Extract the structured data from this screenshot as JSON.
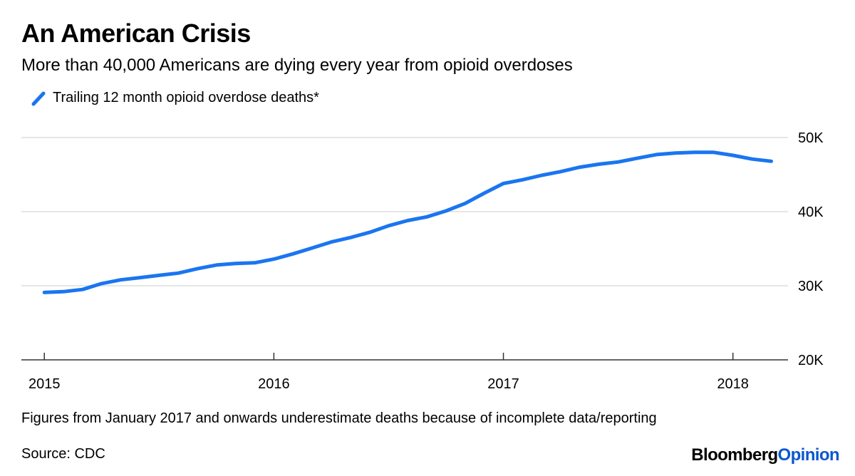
{
  "title": "An American Crisis",
  "subtitle": "More than 40,000 Americans are dying every year from opioid overdoses",
  "legend": {
    "label": "Trailing 12 month opioid overdose deaths*"
  },
  "footnote": "Figures from January 2017 and onwards underestimate deaths because of incomplete data/reporting",
  "source": "Source: CDC",
  "brand": {
    "main": "Bloomberg",
    "opinion": "Opinion"
  },
  "colors": {
    "line": "#1a75f0",
    "grid": "#e6e6e6",
    "axis": "#333333"
  },
  "chart_data": {
    "type": "line",
    "title": "An American Crisis",
    "xlabel": "",
    "ylabel": "",
    "series": [
      {
        "name": "Trailing 12 month opioid overdose deaths*",
        "x": [
          2015.0,
          2015.083,
          2015.167,
          2015.25,
          2015.333,
          2015.417,
          2015.5,
          2015.583,
          2015.667,
          2015.75,
          2015.833,
          2015.917,
          2016.0,
          2016.083,
          2016.167,
          2016.25,
          2016.333,
          2016.417,
          2016.5,
          2016.583,
          2016.667,
          2016.75,
          2016.833,
          2016.917,
          2017.0,
          2017.083,
          2017.167,
          2017.25,
          2017.333,
          2017.417,
          2017.5,
          2017.583,
          2017.667,
          2017.75,
          2017.833,
          2017.917,
          2018.0,
          2018.083,
          2018.167
        ],
        "values": [
          29100,
          29200,
          29500,
          30300,
          30800,
          31100,
          31400,
          31700,
          32300,
          32800,
          33000,
          33100,
          33600,
          34300,
          35100,
          35900,
          36500,
          37200,
          38100,
          38800,
          39300,
          40100,
          41100,
          42500,
          43800,
          44300,
          44900,
          45400,
          46000,
          46400,
          46700,
          47200,
          47700,
          47900,
          48000,
          48000,
          47600,
          47100,
          46800
        ]
      }
    ],
    "x_ticks": [
      "2015",
      "2016",
      "2017",
      "2018"
    ],
    "x_tick_values": [
      2015,
      2016,
      2017,
      2018
    ],
    "y_ticks": [
      "20K",
      "30K",
      "40K",
      "50K"
    ],
    "y_tick_values": [
      20000,
      30000,
      40000,
      50000
    ],
    "xlim": [
      2014.9,
      2018.24
    ],
    "ylim": [
      20000,
      50000
    ],
    "grid": true
  }
}
